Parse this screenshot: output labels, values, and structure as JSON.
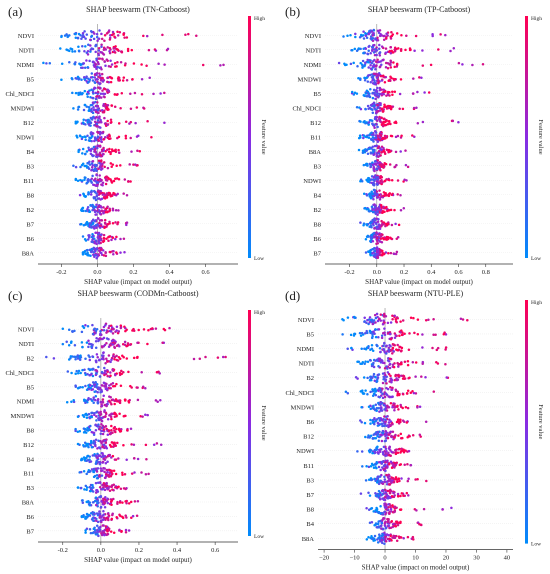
{
  "colors": {
    "high": "#ff0052",
    "mid": "#8a2be2",
    "low": "#008bfb"
  },
  "chart_data": [
    {
      "type": "scatter",
      "panel_label": "(a)",
      "title": "SHAP beeswarm (TN-Catboost)",
      "xlabel": "SHAP value (impact on model output)",
      "colorbar": {
        "label": "Feature value",
        "high": "High",
        "low": "Low"
      },
      "xlim": [
        -0.33,
        0.78
      ],
      "xticks": [
        -0.2,
        0.0,
        0.2,
        0.4,
        0.6
      ],
      "xtick_labels": [
        "-0.2",
        "0.0",
        "0.2",
        "0.4",
        "0.6"
      ],
      "features": [
        {
          "name": "NDVI",
          "min": -0.2,
          "max": 0.55,
          "spread": 0.1,
          "center": 0.0
        },
        {
          "name": "NDTI",
          "min": -0.25,
          "max": 0.45,
          "spread": 0.09,
          "center": 0.0
        },
        {
          "name": "NDMI",
          "min": -0.3,
          "max": 0.75,
          "spread": 0.09,
          "center": 0.0
        },
        {
          "name": "B5",
          "min": -0.2,
          "max": 0.32,
          "spread": 0.07,
          "center": 0.0
        },
        {
          "name": "Chl_NDCI",
          "min": -0.18,
          "max": 0.38,
          "spread": 0.06,
          "center": 0.0
        },
        {
          "name": "MNDWI",
          "min": -0.15,
          "max": 0.28,
          "spread": 0.05,
          "center": 0.0
        },
        {
          "name": "B12",
          "min": -0.12,
          "max": 0.42,
          "spread": 0.05,
          "center": 0.0
        },
        {
          "name": "NDWI",
          "min": -0.15,
          "max": 0.3,
          "spread": 0.05,
          "center": 0.0
        },
        {
          "name": "B4",
          "min": -0.12,
          "max": 0.25,
          "spread": 0.05,
          "center": 0.0
        },
        {
          "name": "B3",
          "min": -0.15,
          "max": 0.24,
          "spread": 0.05,
          "center": 0.0
        },
        {
          "name": "B11",
          "min": -0.12,
          "max": 0.22,
          "spread": 0.05,
          "center": 0.0
        },
        {
          "name": "B8",
          "min": -0.1,
          "max": 0.2,
          "spread": 0.04,
          "center": 0.0
        },
        {
          "name": "B2",
          "min": -0.1,
          "max": 0.18,
          "spread": 0.04,
          "center": 0.0
        },
        {
          "name": "B7",
          "min": -0.1,
          "max": 0.18,
          "spread": 0.04,
          "center": 0.0
        },
        {
          "name": "B6",
          "min": -0.08,
          "max": 0.16,
          "spread": 0.04,
          "center": 0.0
        },
        {
          "name": "B8A",
          "min": -0.08,
          "max": 0.16,
          "spread": 0.04,
          "center": 0.0
        }
      ]
    },
    {
      "type": "scatter",
      "panel_label": "(b)",
      "title": "SHAP beeswarm (TP-Catboost)",
      "xlabel": "SHAP value (impact on model output)",
      "colorbar": {
        "label": "Feature value",
        "high": "High",
        "low": "Low"
      },
      "xlim": [
        -0.38,
        1.0
      ],
      "xticks": [
        -0.2,
        0.0,
        0.2,
        0.4,
        0.6,
        0.8
      ],
      "xtick_labels": [
        "-0.2",
        "0.0",
        "0.2",
        "0.4",
        "0.6",
        "0.8"
      ],
      "features": [
        {
          "name": "NDVI",
          "min": -0.25,
          "max": 0.55,
          "spread": 0.09,
          "center": 0.0
        },
        {
          "name": "NDTI",
          "min": -0.28,
          "max": 0.6,
          "spread": 0.09,
          "center": 0.0
        },
        {
          "name": "NDMI",
          "min": -0.3,
          "max": 0.88,
          "spread": 0.09,
          "center": 0.0
        },
        {
          "name": "MNDWI",
          "min": -0.2,
          "max": 0.35,
          "spread": 0.06,
          "center": 0.0
        },
        {
          "name": "B5",
          "min": -0.2,
          "max": 0.4,
          "spread": 0.06,
          "center": 0.0
        },
        {
          "name": "Chl_NDCI",
          "min": -0.2,
          "max": 0.3,
          "spread": 0.05,
          "center": 0.0
        },
        {
          "name": "B12",
          "min": -0.15,
          "max": 0.62,
          "spread": 0.05,
          "center": 0.0
        },
        {
          "name": "B11",
          "min": -0.15,
          "max": 0.32,
          "spread": 0.05,
          "center": 0.0
        },
        {
          "name": "B8A",
          "min": -0.15,
          "max": 0.22,
          "spread": 0.05,
          "center": 0.0
        },
        {
          "name": "B3",
          "min": -0.12,
          "max": 0.26,
          "spread": 0.04,
          "center": 0.0
        },
        {
          "name": "NDWI",
          "min": -0.12,
          "max": 0.24,
          "spread": 0.04,
          "center": 0.0
        },
        {
          "name": "B4",
          "min": -0.1,
          "max": 0.2,
          "spread": 0.04,
          "center": 0.0
        },
        {
          "name": "B2",
          "min": -0.1,
          "max": 0.2,
          "spread": 0.04,
          "center": 0.0
        },
        {
          "name": "B8",
          "min": -0.12,
          "max": 0.18,
          "spread": 0.04,
          "center": 0.0
        },
        {
          "name": "B6",
          "min": -0.08,
          "max": 0.16,
          "spread": 0.04,
          "center": 0.0
        },
        {
          "name": "B7",
          "min": -0.08,
          "max": 0.15,
          "spread": 0.03,
          "center": 0.0
        }
      ]
    },
    {
      "type": "scatter",
      "panel_label": "(c)",
      "title": "SHAP beeswarm (CODMn-Catboost)",
      "xlabel": "SHAP value (impact on model output)",
      "colorbar": {
        "label": "Feature value",
        "high": "High",
        "low": "Low"
      },
      "xlim": [
        -0.33,
        0.72
      ],
      "xticks": [
        -0.2,
        0.0,
        0.2,
        0.4,
        0.6
      ],
      "xtick_labels": [
        "-0.2",
        "0.0",
        "0.2",
        "0.4",
        "0.6"
      ],
      "features": [
        {
          "name": "NDVI",
          "min": -0.2,
          "max": 0.42,
          "spread": 0.1,
          "center": 0.0
        },
        {
          "name": "NDTI",
          "min": -0.2,
          "max": 0.35,
          "spread": 0.09,
          "center": 0.0
        },
        {
          "name": "B2",
          "min": -0.3,
          "max": 0.68,
          "spread": 0.08,
          "center": 0.0
        },
        {
          "name": "Chl_NDCI",
          "min": -0.18,
          "max": 0.38,
          "spread": 0.07,
          "center": 0.0
        },
        {
          "name": "B5",
          "min": -0.18,
          "max": 0.3,
          "spread": 0.06,
          "center": 0.0
        },
        {
          "name": "NDMI",
          "min": -0.18,
          "max": 0.32,
          "spread": 0.06,
          "center": 0.0
        },
        {
          "name": "MNDWI",
          "min": -0.15,
          "max": 0.28,
          "spread": 0.05,
          "center": 0.0
        },
        {
          "name": "B8",
          "min": -0.2,
          "max": 0.2,
          "spread": 0.06,
          "center": 0.0
        },
        {
          "name": "B12",
          "min": -0.12,
          "max": 0.35,
          "spread": 0.05,
          "center": 0.0
        },
        {
          "name": "B4",
          "min": -0.12,
          "max": 0.25,
          "spread": 0.05,
          "center": 0.0
        },
        {
          "name": "B11",
          "min": -0.12,
          "max": 0.28,
          "spread": 0.05,
          "center": 0.0
        },
        {
          "name": "B3",
          "min": -0.12,
          "max": 0.22,
          "spread": 0.05,
          "center": 0.0
        },
        {
          "name": "B8A",
          "min": -0.1,
          "max": 0.22,
          "spread": 0.05,
          "center": 0.0
        },
        {
          "name": "B6",
          "min": -0.1,
          "max": 0.22,
          "spread": 0.05,
          "center": 0.0
        },
        {
          "name": "B7",
          "min": -0.08,
          "max": 0.16,
          "spread": 0.04,
          "center": 0.0
        }
      ]
    },
    {
      "type": "scatter",
      "panel_label": "(d)",
      "title": "SHAP beeswarm (NTU-PLE)",
      "xlabel": "SHAP value (impact on model output)",
      "colorbar": {
        "label": "Feature value",
        "high": "High",
        "low": "Low"
      },
      "xlim": [
        -22,
        42
      ],
      "xticks": [
        -20,
        -10,
        0,
        10,
        20,
        30,
        40
      ],
      "xtick_labels": [
        "−20",
        "−10",
        "0",
        "10",
        "20",
        "30",
        "40"
      ],
      "features": [
        {
          "name": "NDVI",
          "min": -16,
          "max": 38,
          "spread": 5.0,
          "center": -2.0
        },
        {
          "name": "B5",
          "min": -18,
          "max": 20,
          "spread": 4.5,
          "center": 0.0
        },
        {
          "name": "NDMI",
          "min": -14,
          "max": 22,
          "spread": 4.0,
          "center": 0.0
        },
        {
          "name": "NDTI",
          "min": -12,
          "max": 20,
          "spread": 4.0,
          "center": 0.0
        },
        {
          "name": "B2",
          "min": -10,
          "max": 22,
          "spread": 3.5,
          "center": 0.0
        },
        {
          "name": "Chl_NDCI",
          "min": -14,
          "max": 16,
          "spread": 3.5,
          "center": 0.0
        },
        {
          "name": "MNDWI",
          "min": -8,
          "max": 14,
          "spread": 3.0,
          "center": 0.0
        },
        {
          "name": "B6",
          "min": -10,
          "max": 14,
          "spread": 3.0,
          "center": 0.0
        },
        {
          "name": "B12",
          "min": -8,
          "max": 12,
          "spread": 3.0,
          "center": 0.0
        },
        {
          "name": "NDWI",
          "min": -10,
          "max": 10,
          "spread": 3.0,
          "center": 0.0
        },
        {
          "name": "B11",
          "min": -8,
          "max": 10,
          "spread": 2.5,
          "center": 0.0
        },
        {
          "name": "B3",
          "min": -8,
          "max": 14,
          "spread": 2.5,
          "center": 0.0
        },
        {
          "name": "B7",
          "min": -8,
          "max": 12,
          "spread": 2.5,
          "center": 0.0
        },
        {
          "name": "B8",
          "min": -8,
          "max": 24,
          "spread": 2.5,
          "center": 0.0
        },
        {
          "name": "B4",
          "min": -6,
          "max": 12,
          "spread": 2.5,
          "center": 0.0
        },
        {
          "name": "B8A",
          "min": -6,
          "max": 10,
          "spread": 2.5,
          "center": 0.0
        }
      ]
    }
  ]
}
